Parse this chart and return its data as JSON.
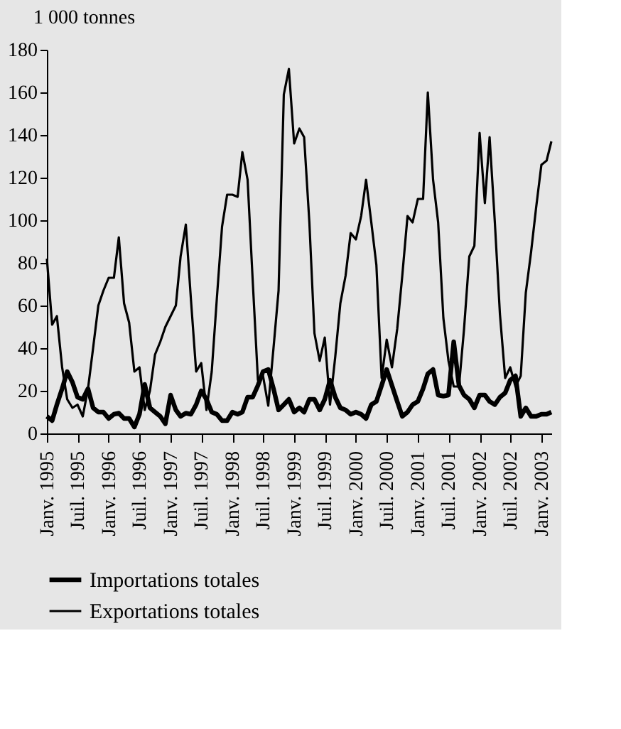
{
  "chart_data": {
    "type": "line",
    "ylabel": "1 000 tonnes",
    "x": [
      "1995-01",
      "1995-02",
      "1995-03",
      "1995-04",
      "1995-05",
      "1995-06",
      "1995-07",
      "1995-08",
      "1995-09",
      "1995-10",
      "1995-11",
      "1995-12",
      "1996-01",
      "1996-02",
      "1996-03",
      "1996-04",
      "1996-05",
      "1996-06",
      "1996-07",
      "1996-08",
      "1996-09",
      "1996-10",
      "1996-11",
      "1996-12",
      "1997-01",
      "1997-02",
      "1997-03",
      "1997-04",
      "1997-05",
      "1997-06",
      "1997-07",
      "1997-08",
      "1997-09",
      "1997-10",
      "1997-11",
      "1997-12",
      "1998-01",
      "1998-02",
      "1998-03",
      "1998-04",
      "1998-05",
      "1998-06",
      "1998-07",
      "1998-08",
      "1998-09",
      "1998-10",
      "1998-11",
      "1998-12",
      "1999-01",
      "1999-02",
      "1999-03",
      "1999-04",
      "1999-05",
      "1999-06",
      "1999-07",
      "1999-08",
      "1999-09",
      "1999-10",
      "1999-11",
      "1999-12",
      "2000-01",
      "2000-02",
      "2000-03",
      "2000-04",
      "2000-05",
      "2000-06",
      "2000-07",
      "2000-08",
      "2000-09",
      "2000-10",
      "2000-11",
      "2000-12",
      "2001-01",
      "2001-02",
      "2001-03",
      "2001-04",
      "2001-05",
      "2001-06",
      "2001-07",
      "2001-08",
      "2001-09",
      "2001-10",
      "2001-11",
      "2001-12",
      "2002-01",
      "2002-02",
      "2002-03",
      "2002-04",
      "2002-05",
      "2002-06",
      "2002-07",
      "2002-08",
      "2002-09",
      "2002-10",
      "2002-11",
      "2002-12",
      "2003-01",
      "2003-02",
      "2003-03"
    ],
    "series": [
      {
        "name": "Importations totales",
        "color": "#000000",
        "values": [
          8,
          6,
          13.5,
          21,
          29,
          24,
          17,
          16,
          21,
          12,
          10,
          10,
          7,
          9,
          9.5,
          7,
          7,
          3,
          9,
          23,
          12,
          10,
          8,
          4.5,
          18,
          11,
          8,
          9.5,
          9,
          13.5,
          20,
          16,
          10,
          9,
          6,
          6,
          10,
          9,
          10,
          17,
          17,
          22.5,
          29,
          30,
          21,
          11,
          13.5,
          16,
          10,
          12,
          10,
          16,
          16,
          11,
          16,
          25,
          17,
          12,
          11,
          9,
          10,
          9,
          7,
          13.5,
          15,
          22.5,
          30,
          22.5,
          15,
          8,
          10,
          13.5,
          15,
          21,
          28,
          30,
          18,
          17.5,
          18,
          43,
          22.5,
          18,
          16,
          12,
          18,
          18,
          15,
          13.5,
          17,
          19,
          25,
          27,
          8,
          12,
          8,
          8,
          9,
          9,
          10
        ]
      },
      {
        "name": "Exportations totales",
        "color": "#000000",
        "values": [
          82,
          51,
          55,
          31,
          16,
          12,
          13.5,
          8,
          21,
          40,
          60,
          67,
          73,
          73,
          92,
          61,
          52,
          29,
          31,
          11,
          20,
          37,
          43,
          50,
          55,
          60,
          83,
          98,
          63,
          29,
          33,
          11,
          29,
          63,
          97,
          112,
          112,
          111,
          132,
          119,
          72,
          25,
          27,
          13,
          40,
          67,
          159,
          171,
          136,
          143,
          139,
          99,
          47,
          34,
          45,
          13.5,
          36,
          61,
          74,
          94,
          91,
          102,
          119,
          99,
          79,
          26,
          44,
          31,
          49,
          74,
          102,
          99,
          110,
          110,
          160,
          119,
          99,
          54,
          34,
          22,
          22,
          49,
          83,
          88,
          141,
          108,
          139,
          99,
          56,
          26,
          31,
          22,
          27,
          66,
          85,
          106,
          126,
          128,
          137
        ]
      }
    ],
    "xlim": [
      "1995-01",
      "2003-03"
    ],
    "xticks": [
      {
        "value": "1995-01",
        "label": "Janv. 1995"
      },
      {
        "value": "1995-07",
        "label": "Juil. 1995"
      },
      {
        "value": "1996-01",
        "label": "Janv. 1996"
      },
      {
        "value": "1996-07",
        "label": "Juil. 1996"
      },
      {
        "value": "1997-01",
        "label": "Janv. 1997"
      },
      {
        "value": "1997-07",
        "label": "Juil. 1997"
      },
      {
        "value": "1998-01",
        "label": "Janv. 1998"
      },
      {
        "value": "1998-07",
        "label": "Juil. 1998"
      },
      {
        "value": "1999-01",
        "label": "Janv. 1999"
      },
      {
        "value": "1999-07",
        "label": "Juil. 1999"
      },
      {
        "value": "2000-01",
        "label": "Janv. 2000"
      },
      {
        "value": "2000-07",
        "label": "Juil. 2000"
      },
      {
        "value": "2001-01",
        "label": "Janv. 2001"
      },
      {
        "value": "2001-07",
        "label": "Juil. 2001"
      },
      {
        "value": "2002-01",
        "label": "Janv. 2002"
      },
      {
        "value": "2002-07",
        "label": "Juil. 2002"
      },
      {
        "value": "2003-01",
        "label": "Janv. 2003"
      }
    ],
    "ylim": [
      0,
      180
    ],
    "yticks": [
      0,
      20,
      40,
      60,
      80,
      100,
      120,
      140,
      160,
      180
    ],
    "grid": false,
    "legend": "bottom",
    "line_style": "solid",
    "marker": "none"
  }
}
